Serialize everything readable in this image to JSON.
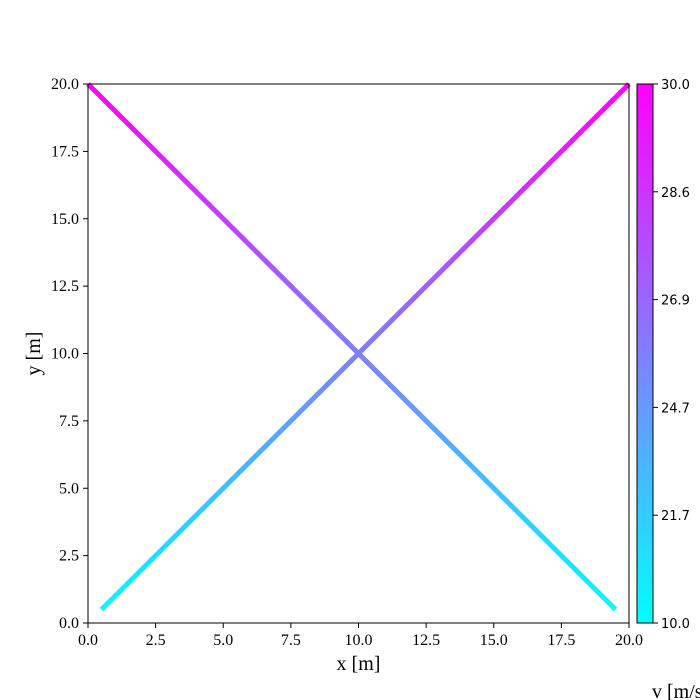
{
  "chart_data": {
    "type": "line",
    "xlabel": "x [m]",
    "ylabel": "y [m]",
    "xlim": [
      0,
      20
    ],
    "ylim": [
      0,
      20
    ],
    "x_ticks": [
      "0.0",
      "2.5",
      "5.0",
      "7.5",
      "10.0",
      "12.5",
      "15.0",
      "17.5",
      "20.0"
    ],
    "y_ticks": [
      "0.0",
      "2.5",
      "5.0",
      "7.5",
      "10.0",
      "12.5",
      "15.0",
      "17.5",
      "20.0"
    ],
    "grid": false,
    "series": [
      {
        "x": [
          0.5,
          20.0
        ],
        "y": [
          0.5,
          20.0
        ]
      },
      {
        "x": [
          0.0,
          19.5
        ],
        "y": [
          20.0,
          0.5
        ]
      }
    ],
    "color_scale": {
      "label": "v [m/s]",
      "min": 10.0,
      "max": 30.0,
      "ticks": [
        "10.0",
        "21.7",
        "24.7",
        "26.9",
        "28.6",
        "30.0"
      ],
      "colormap": "cool",
      "color_low": "#00ffff",
      "color_high": "#ff00ff"
    }
  }
}
